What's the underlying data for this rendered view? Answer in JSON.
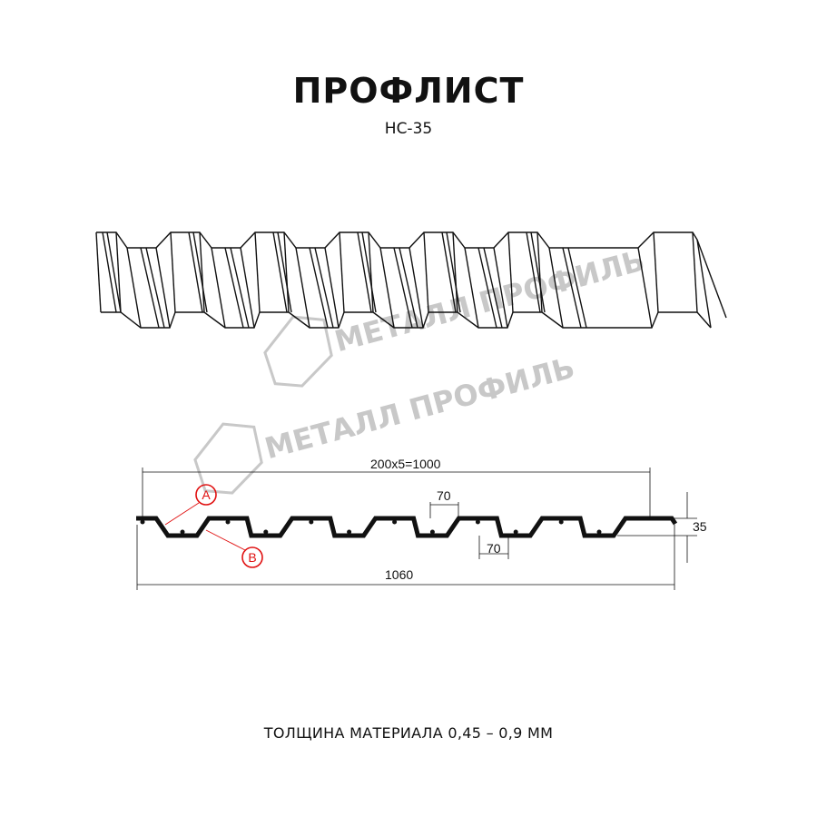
{
  "header": {
    "title": "ПРОФЛИСТ",
    "subtitle": "НС-35"
  },
  "watermark": {
    "text": "МЕТАЛЛ ПРОФИЛЬ"
  },
  "drawing": {
    "dimensions": {
      "pitch_total": "200x5=1000",
      "crest_width": "70",
      "trough_width": "70",
      "height": "35",
      "total_width": "1060"
    },
    "markers": {
      "a": "A",
      "b": "B"
    },
    "colors": {
      "profile": "#111111",
      "marker": "#e01010",
      "watermark": "#c8c8c8"
    }
  },
  "footer": {
    "thickness": "ТОЛЩИНА МАТЕРИАЛА 0,45 – 0,9 ММ"
  }
}
